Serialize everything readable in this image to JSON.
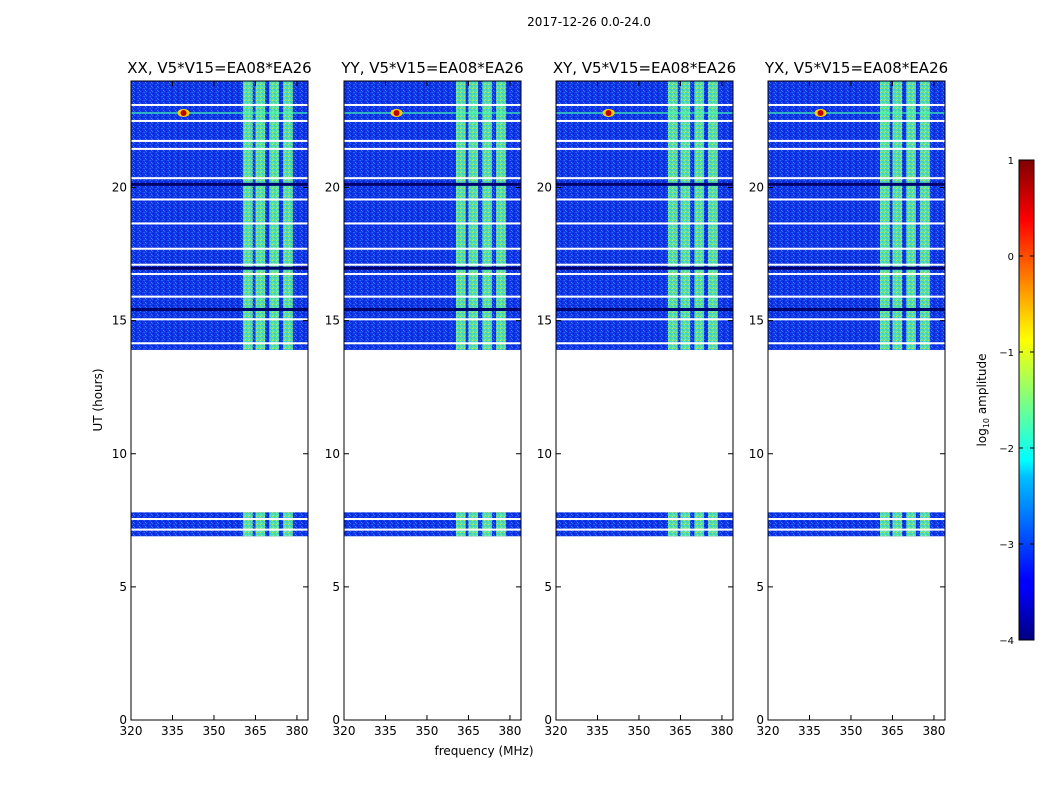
{
  "chart_data": {
    "type": "heatmap",
    "suptitle": "2017-12-26 0.0-24.0",
    "panels": [
      {
        "title": "XX, V5*V15=EA08*EA26",
        "polarization": "XX"
      },
      {
        "title": "YY, V5*V15=EA08*EA26",
        "polarization": "YY"
      },
      {
        "title": "XY, V5*V15=EA08*EA26",
        "polarization": "XY"
      },
      {
        "title": "YX, V5*V15=EA08*EA26",
        "polarization": "YX"
      }
    ],
    "xlabel": "frequency (MHz)",
    "ylabel": "UT (hours)",
    "xlim": [
      320,
      384
    ],
    "ylim": [
      0,
      24
    ],
    "xticks": [
      320,
      335,
      350,
      365,
      380
    ],
    "yticks": [
      0,
      5,
      10,
      15,
      20
    ],
    "data_segments_ut": [
      [
        6.9,
        7.8
      ],
      [
        13.9,
        24.0
      ]
    ],
    "rfi_spike_mhz": 339,
    "rfi_spike_ut": 22.8,
    "bright_band_mhz": [
      360,
      380
    ],
    "bright_channels_mhz": [
      [
        360.5,
        364
      ],
      [
        365,
        368.5
      ],
      [
        370,
        373.5
      ],
      [
        375,
        378.5
      ]
    ],
    "colorbar": {
      "label": "log",
      "label_sub": "10",
      "label_rest": " amplitude",
      "range": [
        -4,
        1
      ],
      "ticks": [
        -4,
        -3,
        -2,
        -1,
        0,
        1
      ],
      "tick_labels": [
        "−4",
        "−3",
        "−2",
        "−1",
        "0",
        "1"
      ],
      "colormap": "jet"
    }
  }
}
